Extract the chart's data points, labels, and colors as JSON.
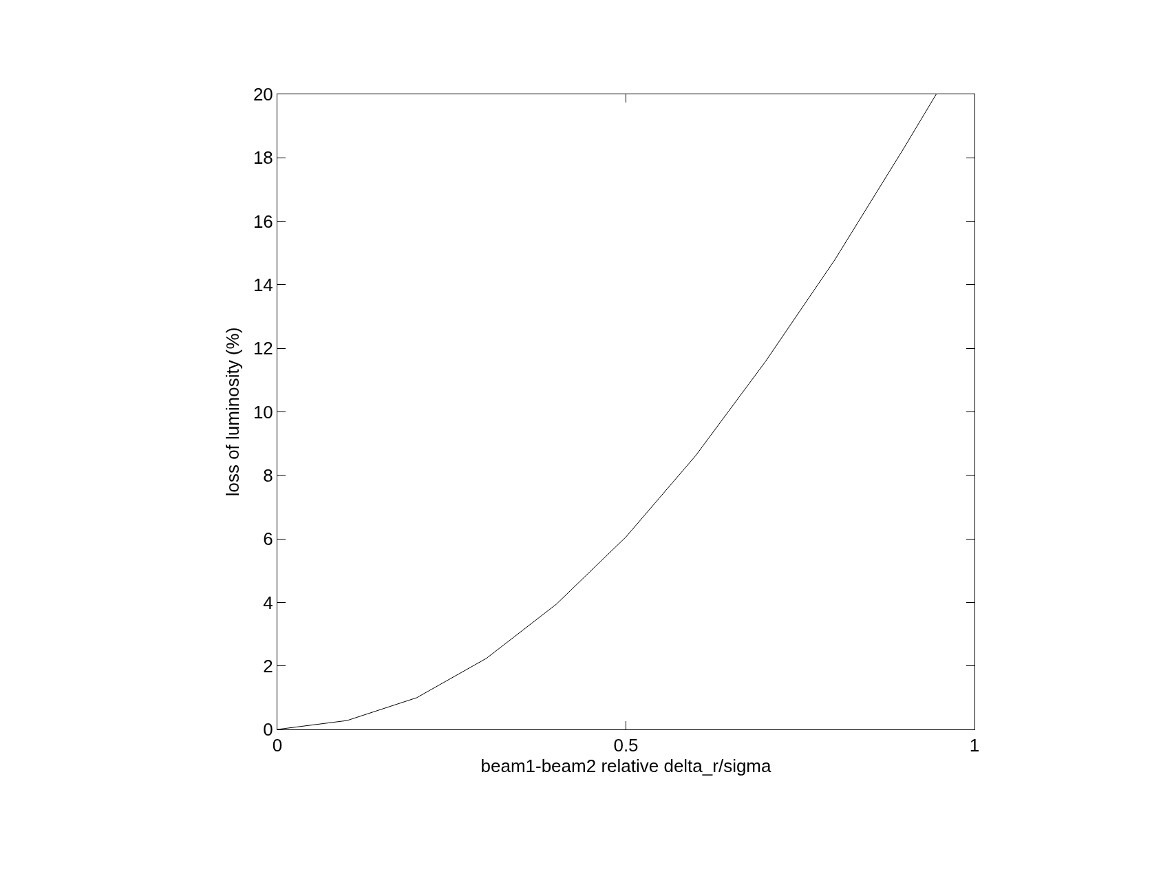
{
  "chart_data": {
    "type": "line",
    "xlabel": "beam1-beam2 relative delta_r/sigma",
    "ylabel": "loss of luminosity (%)",
    "x": [
      0,
      0.1,
      0.2,
      0.3,
      0.4,
      0.5,
      0.6,
      0.7,
      0.8,
      0.9,
      0.945
    ],
    "series": [
      {
        "color": "#000000",
        "values": [
          0,
          0.28,
          1.0,
          2.24,
          3.94,
          6.06,
          8.62,
          11.58,
          14.8,
          18.35,
          20
        ]
      }
    ],
    "xlim": [
      0,
      1
    ],
    "xticks": [
      0,
      0.5,
      1
    ],
    "ylim": [
      0,
      20
    ],
    "yticks": [
      0,
      2,
      4,
      6,
      8,
      10,
      12,
      14,
      16,
      18,
      20
    ],
    "marker": "none",
    "line_style": "solid"
  }
}
